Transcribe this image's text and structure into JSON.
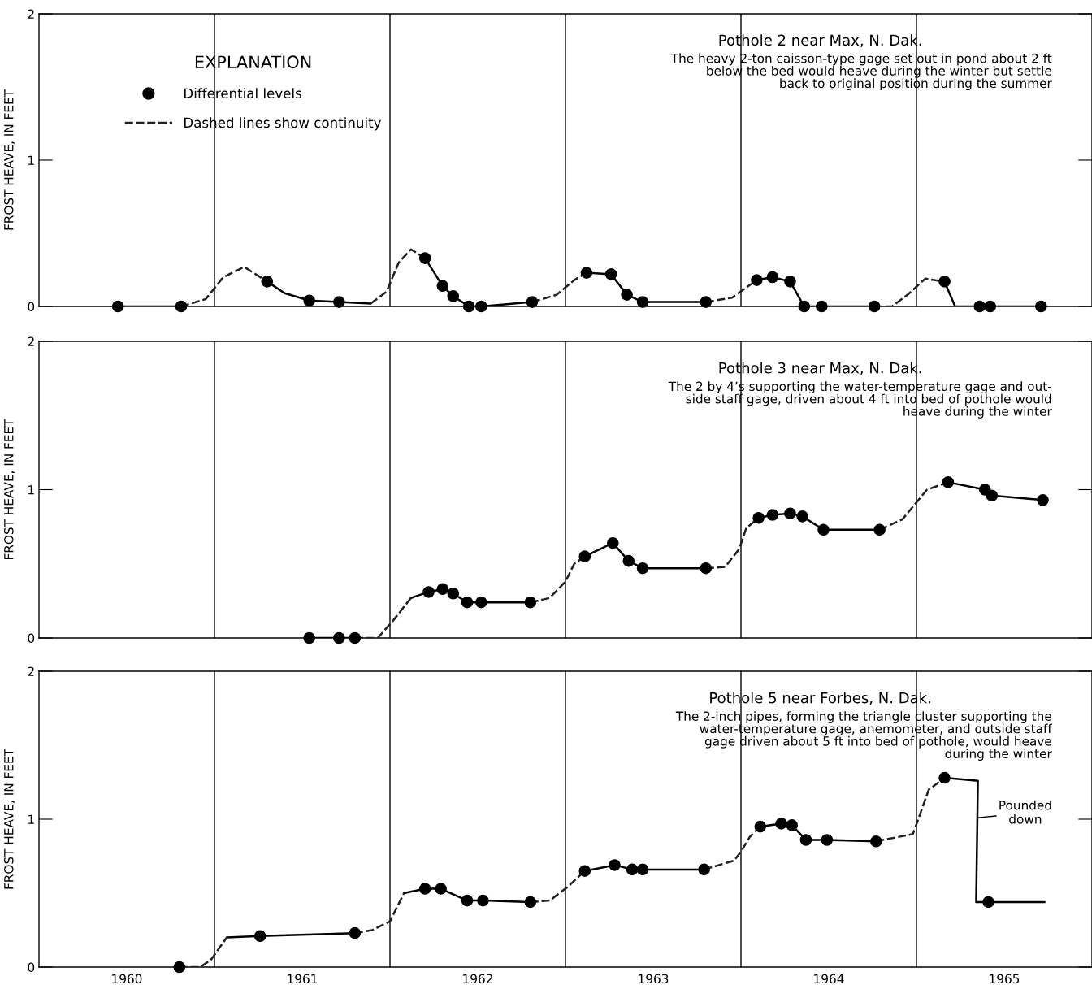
{
  "chart_data": [
    {
      "type": "line",
      "title": "Pothole 2 near Max, N. Dak.",
      "ylabel": "FROST HEAVE, IN FEET",
      "legend": "top left",
      "legend_title": "EXPLANATION",
      "annotations": [
        "The heavy 2-ton caisson-type gage set out in pond about 2 ft\nbelow the bed would heave during the winter but settle\nback to original position during the summer"
      ],
      "xlim": [
        1960,
        1966
      ],
      "ylim": [
        0,
        2
      ],
      "yticks": [
        0,
        1,
        2
      ],
      "tick_labels": "y",
      "ref_lines": [
        {
          "axis": "x",
          "value": 1961,
          "color": "#000000"
        },
        {
          "axis": "x",
          "value": 1962,
          "color": "#000000"
        },
        {
          "axis": "x",
          "value": 1963,
          "color": "#000000"
        },
        {
          "axis": "x",
          "value": 1964,
          "color": "#000000"
        },
        {
          "axis": "x",
          "value": 1965,
          "color": "#000000"
        }
      ],
      "series": [
        {
          "type": "line",
          "line_style": "solid",
          "color": "#000000",
          "x": [
            1960.45,
            1960.81,
            1961.0,
            1961.3,
            1961.4,
            1961.54,
            1961.71,
            1961.89,
            1962.0,
            1962.2,
            1962.3,
            1962.36,
            1962.45,
            1962.52,
            1962.81,
            1962.9,
            1963.12,
            1963.26,
            1963.35,
            1963.44,
            1963.8,
            1963.9,
            1964.09,
            1964.18,
            1964.28,
            1964.36,
            1964.46,
            1964.76,
            1964.9,
            1965.16,
            1965.22,
            1965.71
          ],
          "values": [
            0,
            0,
            null,
            0.17,
            0.09,
            0.04,
            0.03,
            0.02,
            null,
            0.33,
            0.14,
            0.07,
            0,
            0,
            0.03,
            null,
            0.23,
            0.22,
            0.08,
            0.03,
            0.03,
            null,
            0.18,
            0.2,
            0.17,
            0,
            0,
            0,
            null,
            0.17,
            0,
            0
          ]
        },
        {
          "type": "line",
          "name": "Dashed lines show continuity",
          "line_style": "dashed",
          "color": "#202020",
          "x": [
            1960.81,
            1960.95,
            1961.05,
            1961.17,
            1961.3,
            1961.5,
            1961.89,
            1961.98,
            1962.05,
            1962.12,
            1962.2,
            1962.5,
            1962.81,
            1962.95,
            1963.05,
            1963.12,
            1963.5,
            1963.8,
            1963.95,
            1964.09,
            1964.5,
            1964.76,
            1964.86,
            1964.95,
            1965.05,
            1965.16
          ],
          "values": [
            0,
            0.05,
            0.2,
            0.27,
            0.17,
            null,
            0.02,
            0.1,
            0.3,
            0.39,
            0.33,
            null,
            0.03,
            0.08,
            0.18,
            0.23,
            null,
            0.03,
            0.06,
            0.18,
            null,
            0,
            0,
            0.08,
            0.19,
            0.17
          ]
        },
        {
          "type": "scatter",
          "name": "Differential levels",
          "marker": "circle",
          "color": "#000000",
          "x": [
            1960.45,
            1960.81,
            1961.3,
            1961.54,
            1961.71,
            1962.2,
            1962.3,
            1962.36,
            1962.45,
            1962.52,
            1962.81,
            1963.12,
            1963.26,
            1963.35,
            1963.44,
            1963.8,
            1964.09,
            1964.18,
            1964.28,
            1964.36,
            1964.46,
            1964.76,
            1965.16,
            1965.36,
            1965.42,
            1965.71
          ],
          "values": [
            0,
            0,
            0.17,
            0.04,
            0.03,
            0.33,
            0.14,
            0.07,
            0,
            0,
            0.03,
            0.23,
            0.22,
            0.08,
            0.03,
            0.03,
            0.18,
            0.2,
            0.17,
            0,
            0,
            0,
            0.17,
            0,
            0,
            0
          ]
        }
      ]
    },
    {
      "type": "line",
      "title": "Pothole 3 near Max, N. Dak.",
      "ylabel": "FROST HEAVE, IN FEET",
      "annotations": [
        "The 2 by 4’s supporting the water-temperature gage and out-\nside staff gage, driven about 4 ft into bed of pothole would\nheave during the winter"
      ],
      "xlim": [
        1960,
        1966
      ],
      "ylim": [
        0,
        2
      ],
      "yticks": [
        0,
        1,
        2
      ],
      "tick_labels": "y",
      "ref_lines": [
        {
          "axis": "x",
          "value": 1961,
          "color": "#000000"
        },
        {
          "axis": "x",
          "value": 1962,
          "color": "#000000"
        },
        {
          "axis": "x",
          "value": 1963,
          "color": "#000000"
        },
        {
          "axis": "x",
          "value": 1964,
          "color": "#000000"
        },
        {
          "axis": "x",
          "value": 1965,
          "color": "#000000"
        }
      ],
      "series": [
        {
          "type": "line",
          "line_style": "solid",
          "color": "#000000",
          "x": [
            1961.54,
            1961.8,
            1961.9,
            1962.12,
            1962.22,
            1962.3,
            1962.36,
            1962.44,
            1962.52,
            1962.8,
            1962.9,
            1963.11,
            1963.27,
            1963.36,
            1963.44,
            1963.8,
            1963.9,
            1964.1,
            1964.18,
            1964.28,
            1964.35,
            1964.47,
            1964.79,
            1964.9,
            1965.18,
            1965.39,
            1965.43,
            1965.72
          ],
          "values": [
            0,
            0,
            null,
            0.27,
            0.31,
            0.33,
            0.3,
            0.24,
            0.24,
            0.24,
            null,
            0.55,
            0.64,
            0.52,
            0.47,
            0.47,
            null,
            0.81,
            0.83,
            0.84,
            0.82,
            0.73,
            0.73,
            null,
            1.05,
            1.0,
            0.96,
            0.93
          ]
        },
        {
          "type": "line",
          "line_style": "dashed",
          "color": "#202020",
          "x": [
            1961.8,
            1961.93,
            1962.02,
            1962.12,
            1962.2,
            1962.8,
            1962.91,
            1963.0,
            1963.05,
            1963.11,
            1963.2,
            1963.8,
            1963.91,
            1963.99,
            1964.03,
            1964.1,
            1964.2,
            1964.79,
            1964.92,
            1965.06,
            1965.18
          ],
          "values": [
            0,
            0,
            0.12,
            0.27,
            null,
            0.24,
            0.27,
            0.38,
            0.5,
            0.55,
            null,
            0.47,
            0.48,
            0.6,
            0.74,
            0.81,
            null,
            0.73,
            0.8,
            1.0,
            1.05
          ]
        },
        {
          "type": "scatter",
          "marker": "circle",
          "color": "#000000",
          "x": [
            1961.54,
            1961.71,
            1961.8,
            1962.22,
            1962.3,
            1962.36,
            1962.44,
            1962.52,
            1962.8,
            1963.11,
            1963.27,
            1963.36,
            1963.44,
            1963.8,
            1964.1,
            1964.18,
            1964.28,
            1964.35,
            1964.47,
            1964.79,
            1965.18,
            1965.39,
            1965.43,
            1965.72
          ],
          "values": [
            0,
            0,
            0,
            0.31,
            0.33,
            0.3,
            0.24,
            0.24,
            0.24,
            0.55,
            0.64,
            0.52,
            0.47,
            0.47,
            0.81,
            0.83,
            0.84,
            0.82,
            0.73,
            0.73,
            1.05,
            1.0,
            0.96,
            0.93
          ]
        }
      ]
    },
    {
      "type": "line",
      "title": "Pothole 5 near Forbes, N. Dak.",
      "ylabel": "FROST HEAVE, IN FEET",
      "annotations": [
        "The 2-inch pipes, forming the triangle cluster supporting the\nwater-temperature gage, anemometer, and outside staff\ngage driven about 5 ft into bed of pothole, would heave\nduring the winter",
        {
          "text": "Pounded\ndown",
          "x": 1965.35,
          "y": 1.01
        }
      ],
      "xlim": [
        1960,
        1966
      ],
      "xticks": [
        {
          "value": 1960.5,
          "label": "1960"
        },
        {
          "value": 1961.5,
          "label": "1961"
        },
        {
          "value": 1962.5,
          "label": "1962"
        },
        {
          "value": 1963.5,
          "label": "1963"
        },
        {
          "value": 1964.5,
          "label": "1964"
        },
        {
          "value": 1965.5,
          "label": "1965"
        }
      ],
      "ylim": [
        0,
        2
      ],
      "yticks": [
        0,
        1,
        2
      ],
      "ref_lines": [
        {
          "axis": "x",
          "value": 1961,
          "color": "#000000"
        },
        {
          "axis": "x",
          "value": 1962,
          "color": "#000000"
        },
        {
          "axis": "x",
          "value": 1963,
          "color": "#000000"
        },
        {
          "axis": "x",
          "value": 1964,
          "color": "#000000"
        },
        {
          "axis": "x",
          "value": 1965,
          "color": "#000000"
        }
      ],
      "series": [
        {
          "type": "line",
          "line_style": "solid",
          "color": "#000000",
          "x": [
            1961.07,
            1961.26,
            1961.8,
            1961.9,
            1962.08,
            1962.2,
            1962.29,
            1962.44,
            1962.53,
            1962.8,
            1962.9,
            1963.11,
            1963.28,
            1963.38,
            1963.44,
            1963.79,
            1963.9,
            1964.11,
            1964.23,
            1964.29,
            1964.37,
            1964.49,
            1964.77,
            1964.9,
            1965.16,
            1965.35,
            1965.34,
            1965.41,
            1965.73
          ],
          "values": [
            0.2,
            0.21,
            0.23,
            null,
            0.5,
            0.53,
            0.53,
            0.45,
            0.45,
            0.44,
            null,
            0.65,
            0.69,
            0.66,
            0.66,
            0.66,
            null,
            0.95,
            0.97,
            0.96,
            0.86,
            0.86,
            0.85,
            null,
            1.28,
            1.26,
            0.44,
            0.44,
            0.44
          ]
        },
        {
          "type": "line",
          "line_style": "dashed",
          "color": "#202020",
          "x": [
            1960.8,
            1960.92,
            1960.98,
            1961.07,
            1961.2,
            1961.8,
            1961.9,
            1962.0,
            1962.08,
            1962.2,
            1962.8,
            1962.91,
            1963.01,
            1963.11,
            1963.2,
            1963.79,
            1963.96,
            1964.0,
            1964.05,
            1964.11,
            1964.2,
            1964.77,
            1964.98,
            1965.07,
            1965.16
          ],
          "values": [
            0,
            0,
            0.05,
            0.2,
            null,
            0.23,
            0.25,
            0.31,
            0.5,
            null,
            0.44,
            0.45,
            0.54,
            0.65,
            null,
            0.66,
            0.72,
            0.78,
            0.88,
            0.95,
            null,
            0.85,
            0.9,
            1.2,
            1.28
          ]
        },
        {
          "type": "scatter",
          "marker": "circle",
          "color": "#000000",
          "x": [
            1960.8,
            1961.26,
            1961.8,
            1962.2,
            1962.29,
            1962.44,
            1962.53,
            1962.8,
            1963.11,
            1963.28,
            1963.38,
            1963.44,
            1963.79,
            1964.11,
            1964.23,
            1964.29,
            1964.37,
            1964.49,
            1964.77,
            1965.16,
            1965.41
          ],
          "values": [
            0,
            0.21,
            0.23,
            0.53,
            0.53,
            0.45,
            0.45,
            0.44,
            0.65,
            0.69,
            0.66,
            0.66,
            0.66,
            0.95,
            0.97,
            0.96,
            0.86,
            0.86,
            0.85,
            1.28,
            0.44
          ]
        }
      ]
    }
  ]
}
